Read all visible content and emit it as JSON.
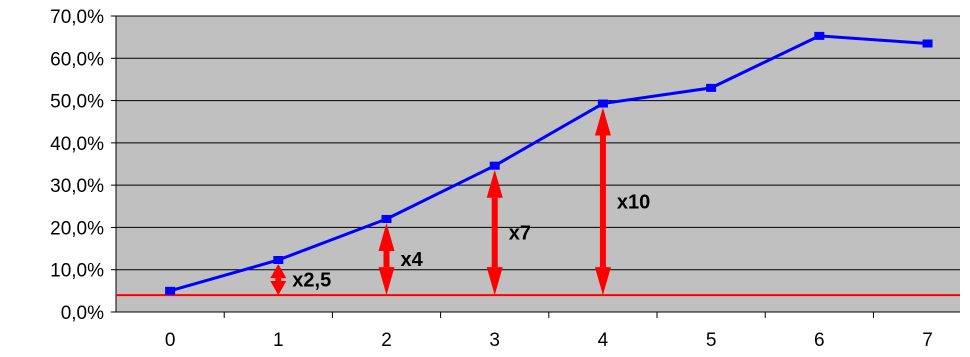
{
  "chart_data": {
    "type": "line",
    "title": "",
    "xlabel": "",
    "ylabel": "",
    "x": [
      0,
      1,
      2,
      3,
      4,
      5,
      6,
      7
    ],
    "x_tick_labels": [
      "0",
      "1",
      "2",
      "3",
      "4",
      "5",
      "6",
      "7"
    ],
    "ylim": [
      0,
      70
    ],
    "y_ticks": [
      0,
      10,
      20,
      30,
      40,
      50,
      60,
      70
    ],
    "y_tick_labels": [
      "0,0%",
      "10,0%",
      "20,0%",
      "30,0%",
      "40,0%",
      "50,0%",
      "60,0%",
      "70,0%"
    ],
    "grid": true,
    "plot_background": "#c0c0c0",
    "series": [
      {
        "values": [
          5.0,
          12.3,
          22.0,
          34.6,
          49.3,
          53.0,
          65.3,
          63.5
        ],
        "color": "#0000ff",
        "marker": "square"
      }
    ],
    "baseline": {
      "value": 4.0,
      "color": "#ff0000"
    },
    "annotations": [
      {
        "x": 1,
        "label": "x2,5",
        "color": "#ff0000"
      },
      {
        "x": 2,
        "label": "x4",
        "color": "#ff0000"
      },
      {
        "x": 3,
        "label": "x7",
        "color": "#ff0000"
      },
      {
        "x": 4,
        "label": "x10",
        "color": "#ff0000"
      }
    ]
  }
}
